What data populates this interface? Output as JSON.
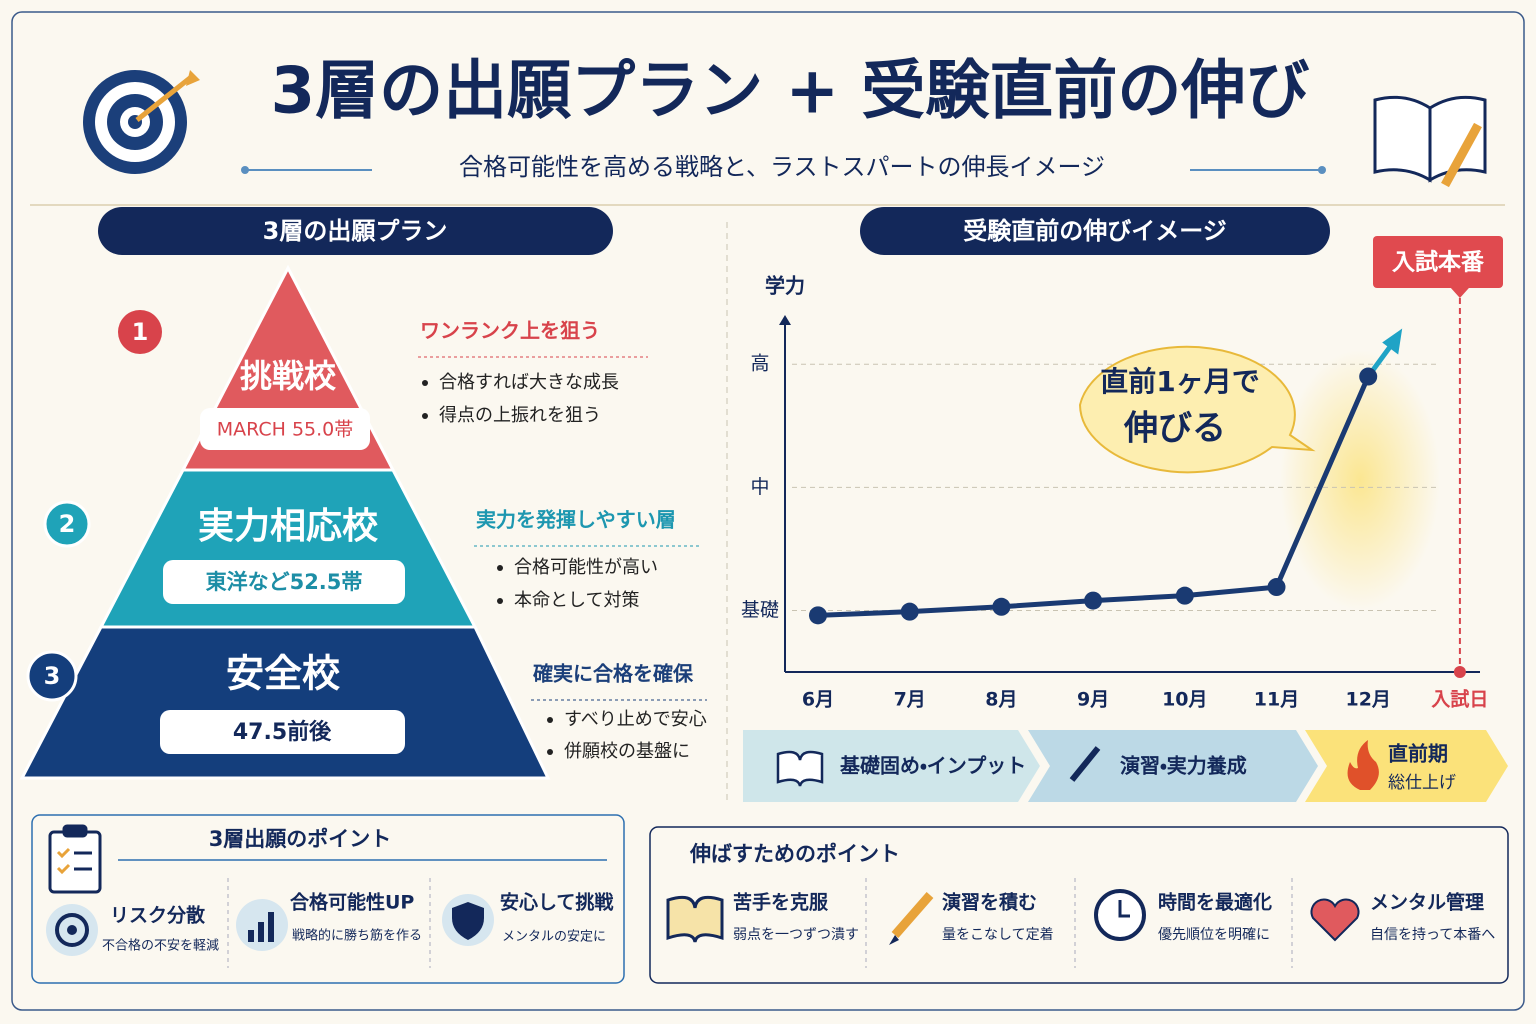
{
  "header": {
    "title": "3層の出願プラン + 受験直前の伸び",
    "subtitle": "合格可能性を高める戦略と、ラストスパートの伸長イメージ"
  },
  "plan": {
    "heading": "3層の出願プラン",
    "tiers": [
      {
        "number": "1",
        "name": "挑戦校",
        "badge": "MARCH 55.0帯",
        "point": "ワンランク上を狙う",
        "bullets": [
          "合格すれば大きな成長",
          "得点の上振れを狙う"
        ]
      },
      {
        "number": "2",
        "name": "実力相応校",
        "badge": "東洋など52.5帯",
        "point": "実力を発揮しやすい層",
        "bullets": [
          "合格可能性が高い",
          "本命として対策"
        ]
      },
      {
        "number": "3",
        "name": "安全校",
        "badge": "47.5前後",
        "point": "確実に合格を確保",
        "bullets": [
          "すべり止めで安心",
          "併願校の基盤に"
        ]
      }
    ]
  },
  "growth": {
    "heading": "受験直前の伸びイメージ",
    "callout": [
      "直前1ヶ月で",
      "伸びる"
    ],
    "exam_marker": "入試本番",
    "phases": [
      {
        "label": "基礎固め・インプット"
      },
      {
        "label": "演習・実力養成"
      },
      {
        "label": "直前期",
        "sub": "総仕上げ"
      }
    ]
  },
  "chart_data": {
    "type": "line",
    "y_label": "学力",
    "categories": [
      "6月",
      "7月",
      "8月",
      "9月",
      "10月",
      "11月",
      "12月",
      "入試日"
    ],
    "series": [
      {
        "name": "学力",
        "color": "#1a3a72",
        "values": [
          0.96,
          0.99,
          1.03,
          1.08,
          1.12,
          1.19,
          2.9,
          null
        ]
      }
    ],
    "ylim": [
      0.5,
      3.4
    ],
    "yticks": [
      {
        "value": 1,
        "label": "基礎"
      },
      {
        "value": 2,
        "label": "中"
      },
      {
        "value": 3,
        "label": "高"
      }
    ],
    "grid": true
  },
  "points_plan": {
    "title": "3層出願のポイント",
    "items": [
      {
        "title": "リスク分散",
        "desc": "不合格の不安を軽減"
      },
      {
        "title": "合格可能性UP",
        "desc": "戦略的に勝ち筋を作る"
      },
      {
        "title": "安心して挑戦",
        "desc": "メンタルの安定に"
      }
    ]
  },
  "points_growth": {
    "title": "伸ばすためのポイント",
    "items": [
      {
        "title": "苦手を克服",
        "desc": "弱点を一つずつ潰す"
      },
      {
        "title": "演習を積む",
        "desc": "量をこなして定着"
      },
      {
        "title": "時間を最適化",
        "desc": "優先順位を明確に"
      },
      {
        "title": "メンタル管理",
        "desc": "自信を持って本番へ"
      }
    ]
  }
}
